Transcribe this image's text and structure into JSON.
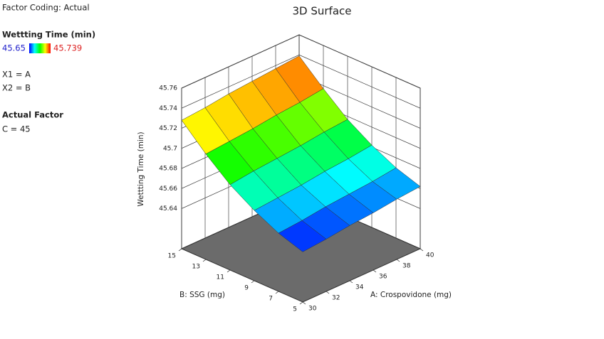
{
  "chart_data": {
    "type": "surface3d",
    "title": "3D Surface",
    "info": {
      "coding": "Factor Coding: Actual",
      "legend_title": "Wettting Time (min)",
      "x1": "X1 = A",
      "x2": "X2 = B",
      "factor_title": "Actual Factor",
      "factor": "C = 45"
    },
    "x_label": "A: Crospovidone (mg)",
    "y_label": "B: SSG (mg)",
    "z_label": "Wettting Time (min)",
    "x": [
      30,
      32,
      34,
      36,
      38,
      40
    ],
    "y": [
      5,
      7,
      9,
      11,
      13,
      15
    ],
    "z": [
      [
        45.65,
        45.652,
        45.655,
        45.657,
        45.66,
        45.662
      ],
      [
        45.658,
        45.66,
        45.663,
        45.665,
        45.667,
        45.67
      ],
      [
        45.67,
        45.672,
        45.674,
        45.677,
        45.679,
        45.682
      ],
      [
        45.685,
        45.688,
        45.69,
        45.692,
        45.695,
        45.697
      ],
      [
        45.705,
        45.707,
        45.709,
        45.712,
        45.714,
        45.717
      ],
      [
        45.728,
        45.73,
        45.733,
        45.735,
        45.737,
        45.739
      ]
    ],
    "xlim": [
      30,
      40
    ],
    "xticks": [
      30,
      32,
      34,
      36,
      38,
      40
    ],
    "ylim": [
      5,
      15
    ],
    "yticks": [
      5,
      7,
      9,
      11,
      13,
      15
    ],
    "zlim": [
      45.6,
      45.76
    ],
    "zticks": [
      45.64,
      45.66,
      45.68,
      45.7,
      45.72,
      45.74,
      45.76
    ],
    "color_range": [
      45.65,
      45.739
    ],
    "colormap": [
      "#0000ff",
      "#00ffff",
      "#00ff00",
      "#ffff00",
      "#ff0000"
    ],
    "floor_color": "#6b6b6b",
    "grid": true
  }
}
